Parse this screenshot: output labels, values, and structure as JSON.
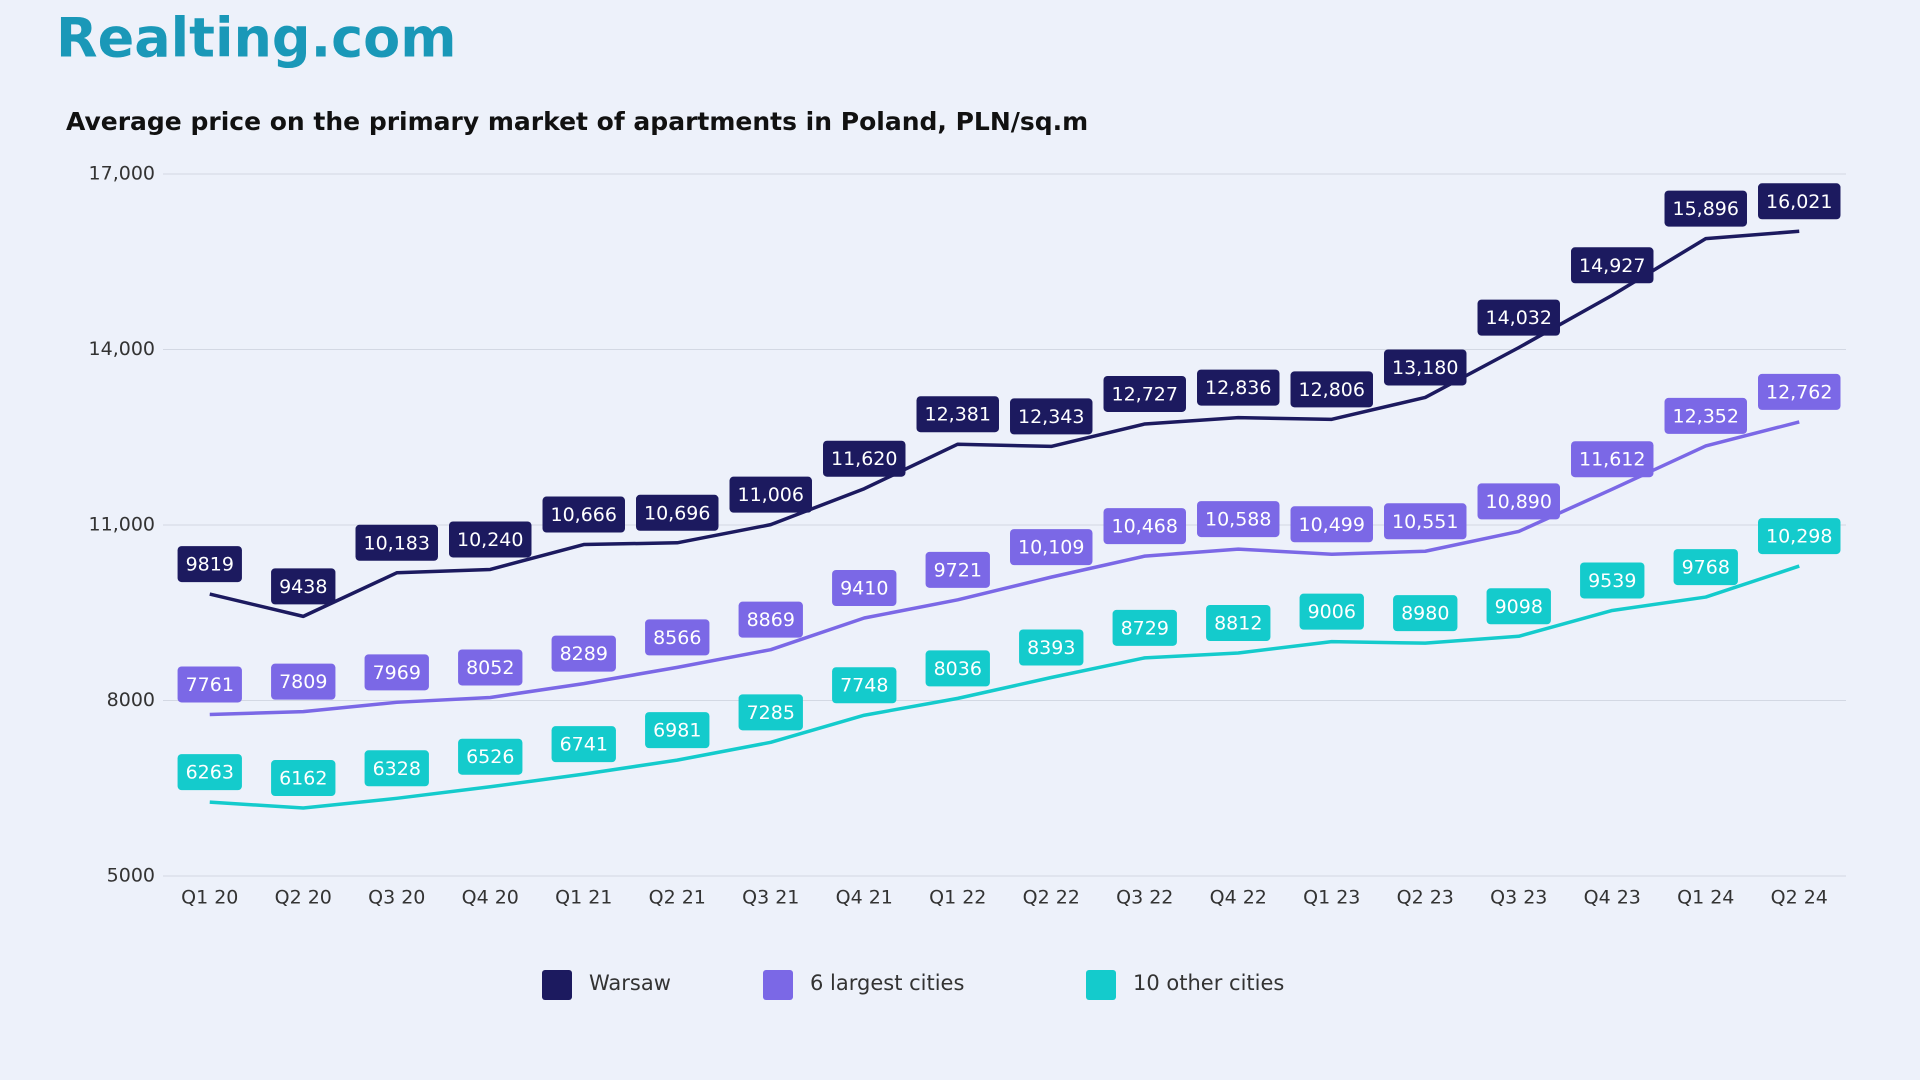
{
  "brand": "Realting.com",
  "chart_data": {
    "type": "line",
    "title": "Average price on the primary market of apartments in Poland, PLN/sq.m",
    "categories": [
      "Q1 20",
      "Q2 20",
      "Q3 20",
      "Q4 20",
      "Q1 21",
      "Q2 21",
      "Q3 21",
      "Q4 21",
      "Q1 22",
      "Q2 22",
      "Q3 22",
      "Q4 22",
      "Q1 23",
      "Q2 23",
      "Q3 23",
      "Q4 23",
      "Q1 24",
      "Q2 24"
    ],
    "series": [
      {
        "name": "Warsaw",
        "color": "#1c1a5f",
        "values": [
          9819,
          9438,
          10183,
          10240,
          10666,
          10696,
          11006,
          11620,
          12381,
          12343,
          12727,
          12836,
          12806,
          13180,
          14032,
          14927,
          15896,
          16021
        ],
        "value_labels": [
          "9819",
          "9438",
          "10,183",
          "10,240",
          "10,666",
          "10,696",
          "11,006",
          "11,620",
          "12,381",
          "12,343",
          "12,727",
          "12,836",
          "12,806",
          "13,180",
          "14,032",
          "14,927",
          "15,896",
          "16,021"
        ]
      },
      {
        "name": "6 largest cities",
        "color": "#7b68e6",
        "values": [
          7761,
          7809,
          7969,
          8052,
          8289,
          8566,
          8869,
          9410,
          9721,
          10109,
          10468,
          10588,
          10499,
          10551,
          10890,
          11612,
          12352,
          12762
        ],
        "value_labels": [
          "7761",
          "7809",
          "7969",
          "8052",
          "8289",
          "8566",
          "8869",
          "9410",
          "9721",
          "10,109",
          "10,468",
          "10,588",
          "10,499",
          "10,551",
          "10,890",
          "11,612",
          "12,352",
          "12,762"
        ]
      },
      {
        "name": "10 other cities",
        "color": "#14cbcc",
        "values": [
          6263,
          6162,
          6328,
          6526,
          6741,
          6981,
          7285,
          7748,
          8036,
          8393,
          8729,
          8812,
          9006,
          8980,
          9098,
          9539,
          9768,
          10298
        ],
        "value_labels": [
          "6263",
          "6162",
          "6328",
          "6526",
          "6741",
          "6981",
          "7285",
          "7748",
          "8036",
          "8393",
          "8729",
          "8812",
          "9006",
          "8980",
          "9098",
          "9539",
          "9768",
          "10,298"
        ]
      }
    ],
    "ylim": [
      5000,
      17000
    ],
    "yticks": [
      5000,
      8000,
      {
        "value": 11000,
        "label": "11,000"
      },
      {
        "value": 14000,
        "label": "14,000"
      },
      {
        "value": 17000,
        "label": "17,000"
      }
    ],
    "grid": true
  }
}
